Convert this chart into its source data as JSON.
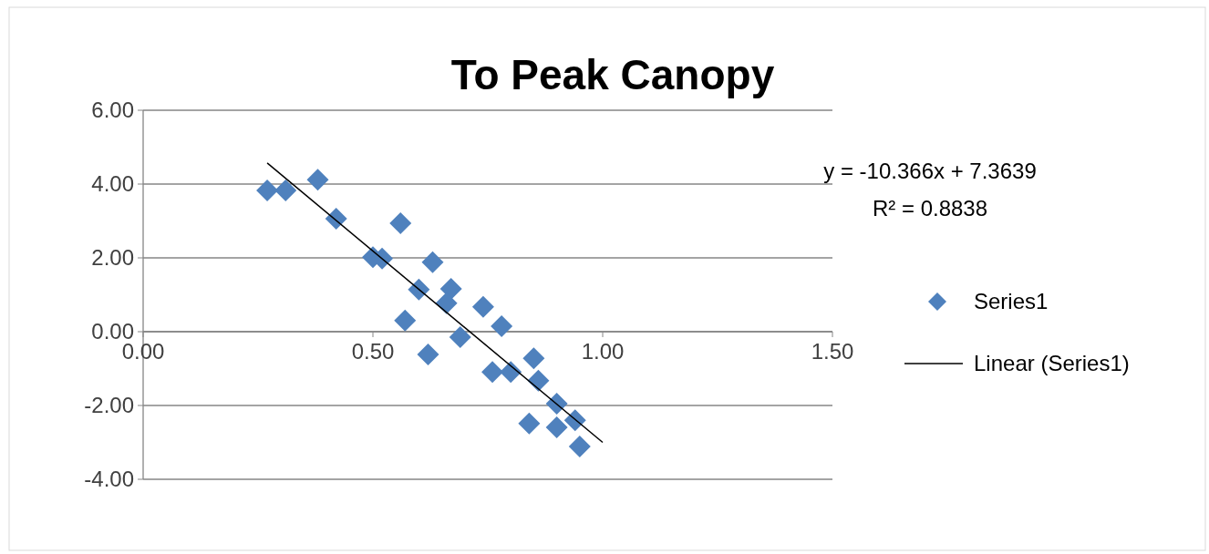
{
  "chart_data": {
    "type": "scatter",
    "title": "To Peak Canopy",
    "xlim": [
      0,
      1.5
    ],
    "xticks": [
      {
        "value": 0,
        "label": "0.00"
      },
      {
        "value": 0.5,
        "label": "0.50"
      },
      {
        "value": 1,
        "label": "1.00"
      },
      {
        "value": 1.5,
        "label": "1.50"
      }
    ],
    "ylim": [
      -4,
      6
    ],
    "yticks": [
      {
        "value": -4,
        "label": "-4.00"
      },
      {
        "value": -2,
        "label": "-2.00"
      },
      {
        "value": 0,
        "label": "0.00"
      },
      {
        "value": 2,
        "label": "2.00"
      },
      {
        "value": 4,
        "label": "4.00"
      },
      {
        "value": 6,
        "label": "6.00"
      }
    ],
    "grid": "y",
    "legend": "right",
    "annotations": [
      "y = -10.366x + 7.3639",
      "R² = 0.8838"
    ],
    "series": [
      {
        "name": "Series1",
        "marker": "diamond",
        "color": "#4f81bd",
        "x": [
          0.27,
          0.31,
          0.38,
          0.42,
          0.5,
          0.52,
          0.56,
          0.63,
          0.6,
          0.67,
          0.66,
          0.57,
          0.74,
          0.69,
          0.78,
          0.62,
          0.76,
          0.8,
          0.85,
          0.86,
          0.9,
          0.84,
          0.9,
          0.94,
          0.95
        ],
        "values": [
          3.83,
          3.83,
          4.12,
          3.06,
          2.02,
          1.98,
          2.94,
          1.88,
          1.14,
          1.16,
          0.77,
          0.3,
          0.67,
          -0.15,
          0.15,
          -0.62,
          -1.09,
          -1.09,
          -0.72,
          -1.33,
          -1.95,
          -2.49,
          -2.59,
          -2.4,
          -3.11
        ]
      },
      {
        "name": "Linear (Series1)",
        "type": "line",
        "marker": "none",
        "color": "#000000",
        "x": [
          0.27,
          1.0
        ],
        "values": [
          4.57,
          -3.0
        ]
      }
    ]
  }
}
